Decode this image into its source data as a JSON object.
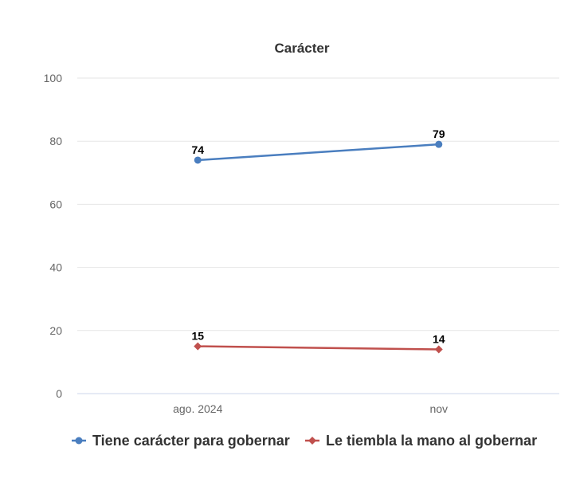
{
  "chart_data": {
    "type": "line",
    "title": "Carácter",
    "xlabel": "",
    "ylabel": "",
    "categories": [
      "ago. 2024",
      "nov"
    ],
    "ylim": [
      0,
      100
    ],
    "yticks": [
      0,
      20,
      40,
      60,
      80,
      100
    ],
    "grid": true,
    "legend_position": "bottom",
    "series": [
      {
        "name": "Tiene carácter para gobernar",
        "values": [
          74,
          79
        ],
        "color": "#4a7ebf",
        "marker": "circle"
      },
      {
        "name": "Le tiembla la mano al gobernar",
        "values": [
          15,
          14
        ],
        "color": "#c0504d",
        "marker": "diamond"
      }
    ]
  }
}
